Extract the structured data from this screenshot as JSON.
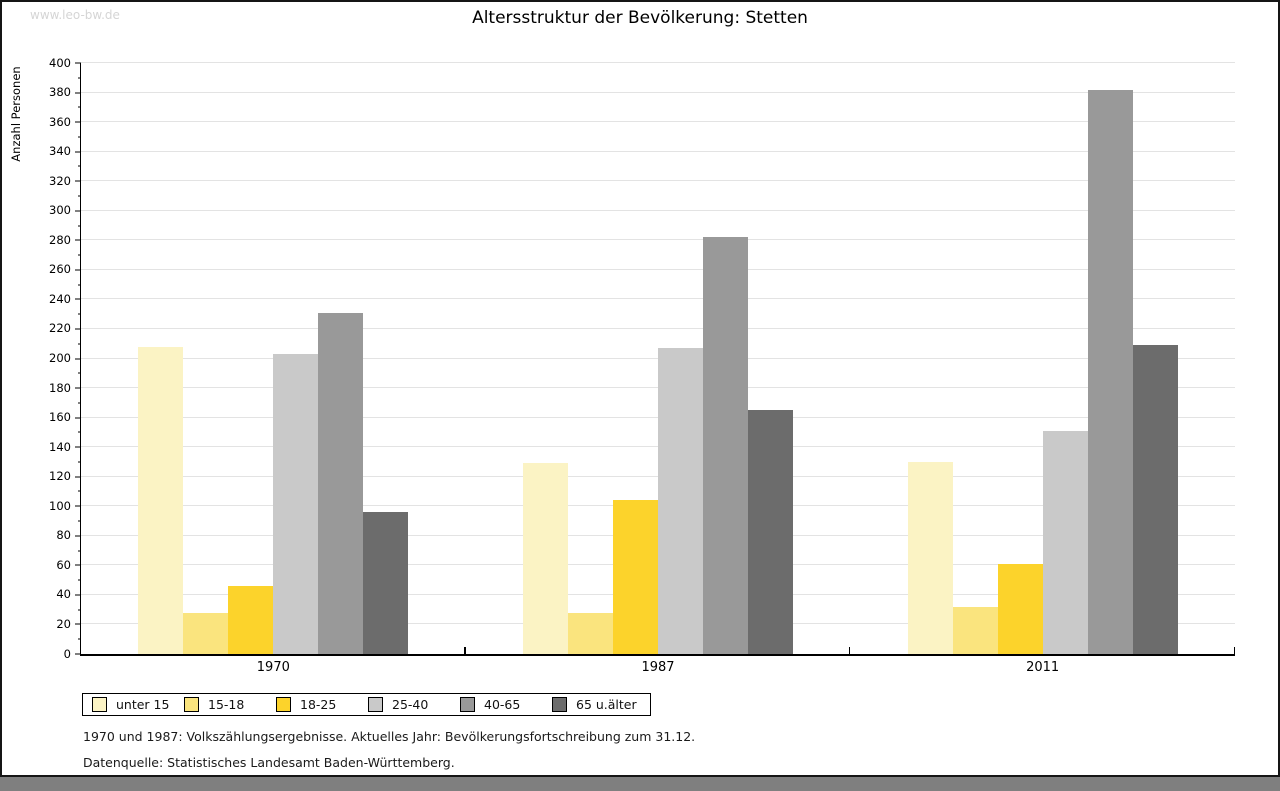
{
  "page": {
    "watermark": "www.leo-bw.de",
    "title": "Altersstruktur der Bevölkerung: Stetten"
  },
  "chart_data": {
    "type": "bar",
    "title": "Altersstruktur der Bevölkerung: Stetten",
    "xlabel": "",
    "ylabel": "Anzahl Personen",
    "categories": [
      "1970",
      "1987",
      "2011"
    ],
    "series": [
      {
        "name": "unter 15",
        "color": "#FBF3C4",
        "values": [
          208,
          129,
          130
        ]
      },
      {
        "name": "15-18",
        "color": "#FAE47E",
        "values": [
          28,
          28,
          32
        ]
      },
      {
        "name": "18-25",
        "color": "#FCD32B",
        "values": [
          46,
          104,
          61
        ]
      },
      {
        "name": "25-40",
        "color": "#C9C9C9",
        "values": [
          203,
          207,
          151
        ]
      },
      {
        "name": "40-65",
        "color": "#999999",
        "values": [
          231,
          282,
          382
        ]
      },
      {
        "name": "65 u.älter",
        "color": "#6C6C6C",
        "values": [
          96,
          165,
          209
        ]
      }
    ],
    "ylim": [
      0,
      400
    ],
    "ytick_step": 20,
    "minor_tick_step": 10,
    "grid": true,
    "gridline_color": "#e3e3e3",
    "legend_position": "bottom-left"
  },
  "footnotes": {
    "line1": "1970 und 1987: Volkszählungsergebnisse. Aktuelles Jahr: Bevölkerungsfortschreibung zum 31.12.",
    "line2": "Datenquelle: Statistisches Landesamt Baden-Württemberg."
  }
}
